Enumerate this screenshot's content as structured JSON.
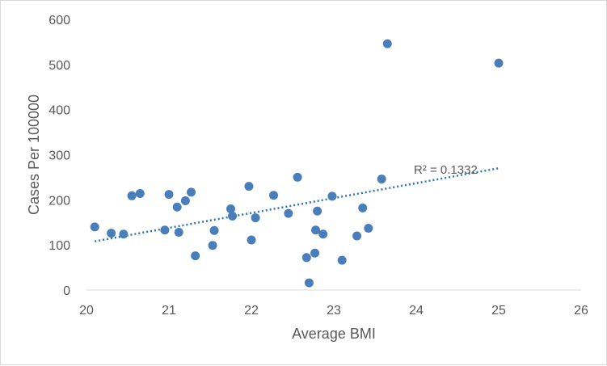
{
  "chart_data": {
    "type": "scatter",
    "title": "",
    "xlabel": "Average BMI",
    "ylabel": "Cases Per 100000",
    "xlim": [
      20,
      26
    ],
    "ylim": [
      0,
      600
    ],
    "x_ticks": [
      "20",
      "21",
      "22",
      "23",
      "24",
      "25",
      "26"
    ],
    "y_ticks": [
      "0",
      "100",
      "200",
      "300",
      "400",
      "500",
      "600"
    ],
    "grid": false,
    "legend": "none",
    "marker_color": "#4a7ebb",
    "trendline_color": "#2e75b6",
    "trendline": {
      "type": "linear",
      "x_range": [
        20.1,
        25
      ],
      "y_at_start": 108,
      "y_at_end": 270,
      "r2_label": "R² = 0.1332"
    },
    "points": [
      {
        "x": 20.1,
        "y": 140
      },
      {
        "x": 20.3,
        "y": 126
      },
      {
        "x": 20.45,
        "y": 124
      },
      {
        "x": 20.55,
        "y": 209
      },
      {
        "x": 20.65,
        "y": 214
      },
      {
        "x": 20.95,
        "y": 133
      },
      {
        "x": 21.0,
        "y": 212
      },
      {
        "x": 21.1,
        "y": 184
      },
      {
        "x": 21.12,
        "y": 128
      },
      {
        "x": 21.2,
        "y": 198
      },
      {
        "x": 21.27,
        "y": 217
      },
      {
        "x": 21.32,
        "y": 76
      },
      {
        "x": 21.53,
        "y": 99
      },
      {
        "x": 21.55,
        "y": 132
      },
      {
        "x": 21.75,
        "y": 180
      },
      {
        "x": 21.77,
        "y": 164
      },
      {
        "x": 21.97,
        "y": 230
      },
      {
        "x": 22.0,
        "y": 111
      },
      {
        "x": 22.05,
        "y": 160
      },
      {
        "x": 22.27,
        "y": 210
      },
      {
        "x": 22.45,
        "y": 170
      },
      {
        "x": 22.56,
        "y": 250
      },
      {
        "x": 22.67,
        "y": 72
      },
      {
        "x": 22.7,
        "y": 16
      },
      {
        "x": 22.77,
        "y": 82
      },
      {
        "x": 22.78,
        "y": 133
      },
      {
        "x": 22.8,
        "y": 175
      },
      {
        "x": 22.87,
        "y": 124
      },
      {
        "x": 22.98,
        "y": 208
      },
      {
        "x": 23.1,
        "y": 66
      },
      {
        "x": 23.28,
        "y": 120
      },
      {
        "x": 23.35,
        "y": 182
      },
      {
        "x": 23.42,
        "y": 137
      },
      {
        "x": 23.58,
        "y": 246
      },
      {
        "x": 23.65,
        "y": 546
      },
      {
        "x": 25.0,
        "y": 503
      }
    ]
  }
}
